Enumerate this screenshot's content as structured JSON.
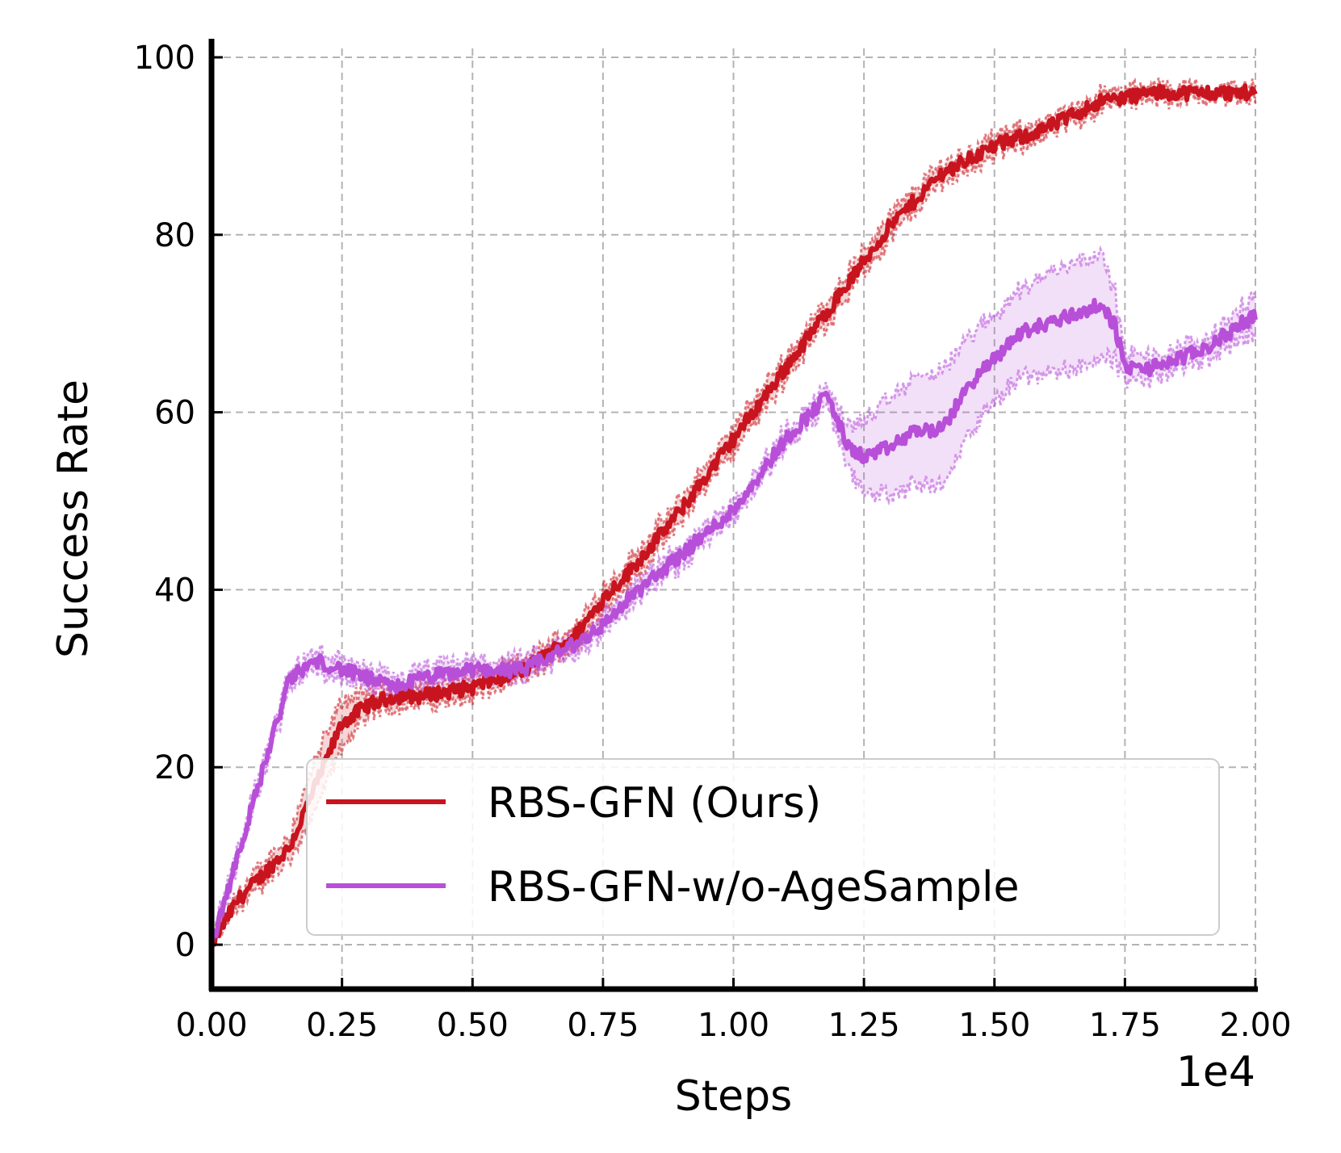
{
  "chart_data": {
    "type": "line",
    "title": "",
    "xlabel": "Steps",
    "ylabel": "Success Rate",
    "x_offset_text": "1e4",
    "xlim": [
      0,
      2.0
    ],
    "ylim": [
      -5,
      101
    ],
    "x_ticks": [
      0.0,
      0.25,
      0.5,
      0.75,
      1.0,
      1.25,
      1.5,
      1.75,
      2.0
    ],
    "x_tick_labels": [
      "0.00",
      "0.25",
      "0.50",
      "0.75",
      "1.00",
      "1.25",
      "1.50",
      "1.75",
      "2.00"
    ],
    "y_ticks": [
      0,
      20,
      40,
      60,
      80,
      100
    ],
    "y_tick_labels": [
      "0",
      "20",
      "40",
      "60",
      "80",
      "100"
    ],
    "grid": true,
    "legend_position": "bottom-right",
    "series": [
      {
        "name": "RBS-GFN (Ours)",
        "color": "#c8141e",
        "x": [
          0.0,
          0.05,
          0.1,
          0.15,
          0.2,
          0.25,
          0.3,
          0.35,
          0.4,
          0.5,
          0.6,
          0.7,
          0.75,
          0.8,
          0.9,
          1.0,
          1.05,
          1.1,
          1.2,
          1.3,
          1.4,
          1.5,
          1.6,
          1.7,
          1.8,
          1.9,
          2.0
        ],
        "y": [
          0,
          5,
          8,
          11,
          18,
          25,
          27,
          28,
          28,
          29,
          31,
          35,
          39,
          42,
          49,
          57,
          61,
          65,
          73,
          81,
          87,
          90,
          92,
          95,
          96,
          96,
          96
        ],
        "band": [
          0.5,
          0.8,
          1.0,
          1.5,
          3.0,
          2.5,
          1.2,
          1.0,
          1.0,
          1.0,
          1.0,
          1.0,
          1.2,
          1.2,
          1.2,
          1.2,
          1.2,
          1.2,
          1.2,
          1.2,
          1.0,
          1.0,
          0.8,
          0.8,
          0.6,
          0.6,
          0.6
        ]
      },
      {
        "name": "RBS-GFN-w/o-AgeSample",
        "color": "#b84fd8",
        "x": [
          0.0,
          0.05,
          0.1,
          0.15,
          0.2,
          0.25,
          0.3,
          0.35,
          0.4,
          0.5,
          0.6,
          0.7,
          0.75,
          0.8,
          0.9,
          1.0,
          1.05,
          1.1,
          1.15,
          1.18,
          1.22,
          1.25,
          1.3,
          1.35,
          1.4,
          1.45,
          1.5,
          1.55,
          1.6,
          1.65,
          1.7,
          1.73,
          1.75,
          1.8,
          1.85,
          1.9,
          1.95,
          2.0
        ],
        "y": [
          0,
          10,
          20,
          30,
          32,
          31,
          30,
          29,
          30,
          31,
          31,
          34,
          36,
          39,
          44,
          49,
          53,
          57,
          60,
          62,
          56,
          55,
          56,
          58,
          58,
          63,
          66,
          69,
          70,
          71,
          72,
          70,
          65,
          65,
          66,
          67,
          69,
          71
        ],
        "band": [
          0.5,
          0.8,
          1.0,
          1.0,
          1.0,
          1.0,
          1.0,
          1.0,
          1.0,
          1.0,
          1.0,
          1.0,
          1.0,
          1.0,
          1.0,
          1.0,
          1.0,
          1.0,
          1.0,
          1.0,
          2.5,
          4.0,
          5.5,
          6.0,
          6.5,
          5.5,
          5.0,
          5.0,
          5.5,
          6.0,
          6.0,
          4.0,
          1.5,
          1.2,
          1.2,
          1.2,
          1.5,
          2.0
        ]
      }
    ]
  }
}
